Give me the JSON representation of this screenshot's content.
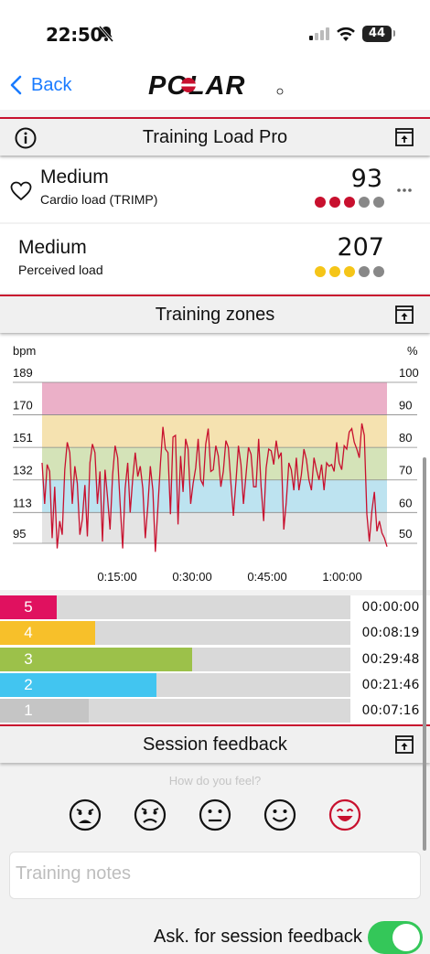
{
  "status": {
    "time": "22:50",
    "battery": "44"
  },
  "nav": {
    "back_label": "Back",
    "logo_text": "POLAR"
  },
  "training_load": {
    "header": "Training Load Pro",
    "cardio": {
      "level": "Medium",
      "label": "Cardio load (TRIMP)",
      "value": "93",
      "dots_filled": 3,
      "dots_total": 5,
      "color": "#c8102e"
    },
    "perceived": {
      "level": "Medium",
      "label": "Perceived load",
      "value": "207",
      "dots_filled": 3,
      "dots_total": 5,
      "color": "#f5c518"
    }
  },
  "training_zones": {
    "header": "Training zones",
    "chart_data": {
      "type": "line",
      "y_unit_left": "bpm",
      "y_unit_right": "%",
      "y_ticks_left": [
        189,
        170,
        151,
        132,
        113,
        95
      ],
      "y_ticks_right": [
        100,
        90,
        80,
        70,
        60,
        50
      ],
      "x_ticks": [
        "0:15:00",
        "0:30:00",
        "0:45:00",
        "1:00:00"
      ],
      "ylim": [
        95,
        189
      ],
      "bands": [
        {
          "zone": 5,
          "from": 170,
          "to": 189,
          "color": "#ebb0c8"
        },
        {
          "zone": 4,
          "from": 151,
          "to": 170,
          "color": "#f5e2b0"
        },
        {
          "zone": 3,
          "from": 132,
          "to": 151,
          "color": "#d4e3b8"
        },
        {
          "zone": 2,
          "from": 113,
          "to": 132,
          "color": "#bde3f0"
        },
        {
          "zone": 1,
          "from": 95,
          "to": 113,
          "color": "#e4e4e4"
        }
      ],
      "series": [
        {
          "color": "#c8102e",
          "values": [
            142,
            118,
            141,
            137,
            98,
            128,
            92,
            108,
            100,
            138,
            154,
            148,
            118,
            140,
            130,
            100,
            109,
            129,
            99,
            142,
            153,
            148,
            118,
            137,
            96,
            138,
            122,
            103,
            135,
            152,
            145,
            118,
            92,
            127,
            142,
            113,
            133,
            148,
            134,
            140,
            127,
            98,
            117,
            140,
            126,
            90,
            116,
            141,
            163,
            150,
            148,
            112,
            157,
            158,
            106,
            146,
            125,
            156,
            150,
            118,
            130,
            139,
            156,
            132,
            129,
            153,
            162,
            137,
            138,
            152,
            146,
            128,
            137,
            155,
            151,
            130,
            111,
            131,
            152,
            141,
            118,
            135,
            151,
            147,
            128,
            128,
            156,
            128,
            108,
            139,
            150,
            149,
            141,
            155,
            145,
            148,
            103,
            119,
            142,
            138,
            126,
            145,
            126,
            135,
            150,
            144,
            132,
            126,
            145,
            138,
            132,
            141,
            126,
            142,
            140,
            141,
            137,
            154,
            142,
            138,
            152,
            150,
            160,
            162,
            154,
            150,
            145,
            165,
            158,
            112,
            96,
            114,
            125,
            102,
            108,
            101,
            98,
            93
          ]
        }
      ]
    },
    "zones": [
      {
        "zone": "5",
        "time": "00:00:00",
        "fraction": 0.0,
        "color": "#e0115f",
        "label_bg": "#e0115f"
      },
      {
        "zone": "4",
        "time": "00:08:19",
        "fraction": 0.13,
        "color": "#f7c02a",
        "label_bg": "#f7c02a"
      },
      {
        "zone": "3",
        "time": "00:29:48",
        "fraction": 0.46,
        "color": "#9cc14a",
        "label_bg": "#9cc14a"
      },
      {
        "zone": "2",
        "time": "00:21:46",
        "fraction": 0.34,
        "color": "#42c5f0",
        "label_bg": "#42c5f0"
      },
      {
        "zone": "1",
        "time": "00:07:16",
        "fraction": 0.11,
        "color": "#c5c5c5",
        "label_bg": "#c5c5c5"
      }
    ]
  },
  "session_feedback": {
    "header": "Session feedback",
    "question": "How do you feel?",
    "faces": [
      "very-sad-face-icon",
      "sad-face-icon",
      "neutral-face-icon",
      "happy-face-icon",
      "very-happy-face-icon"
    ],
    "selected_face": 4,
    "notes_placeholder": "Training notes",
    "bottom_label": "Ask. for session feedback",
    "toggle_on": true
  }
}
